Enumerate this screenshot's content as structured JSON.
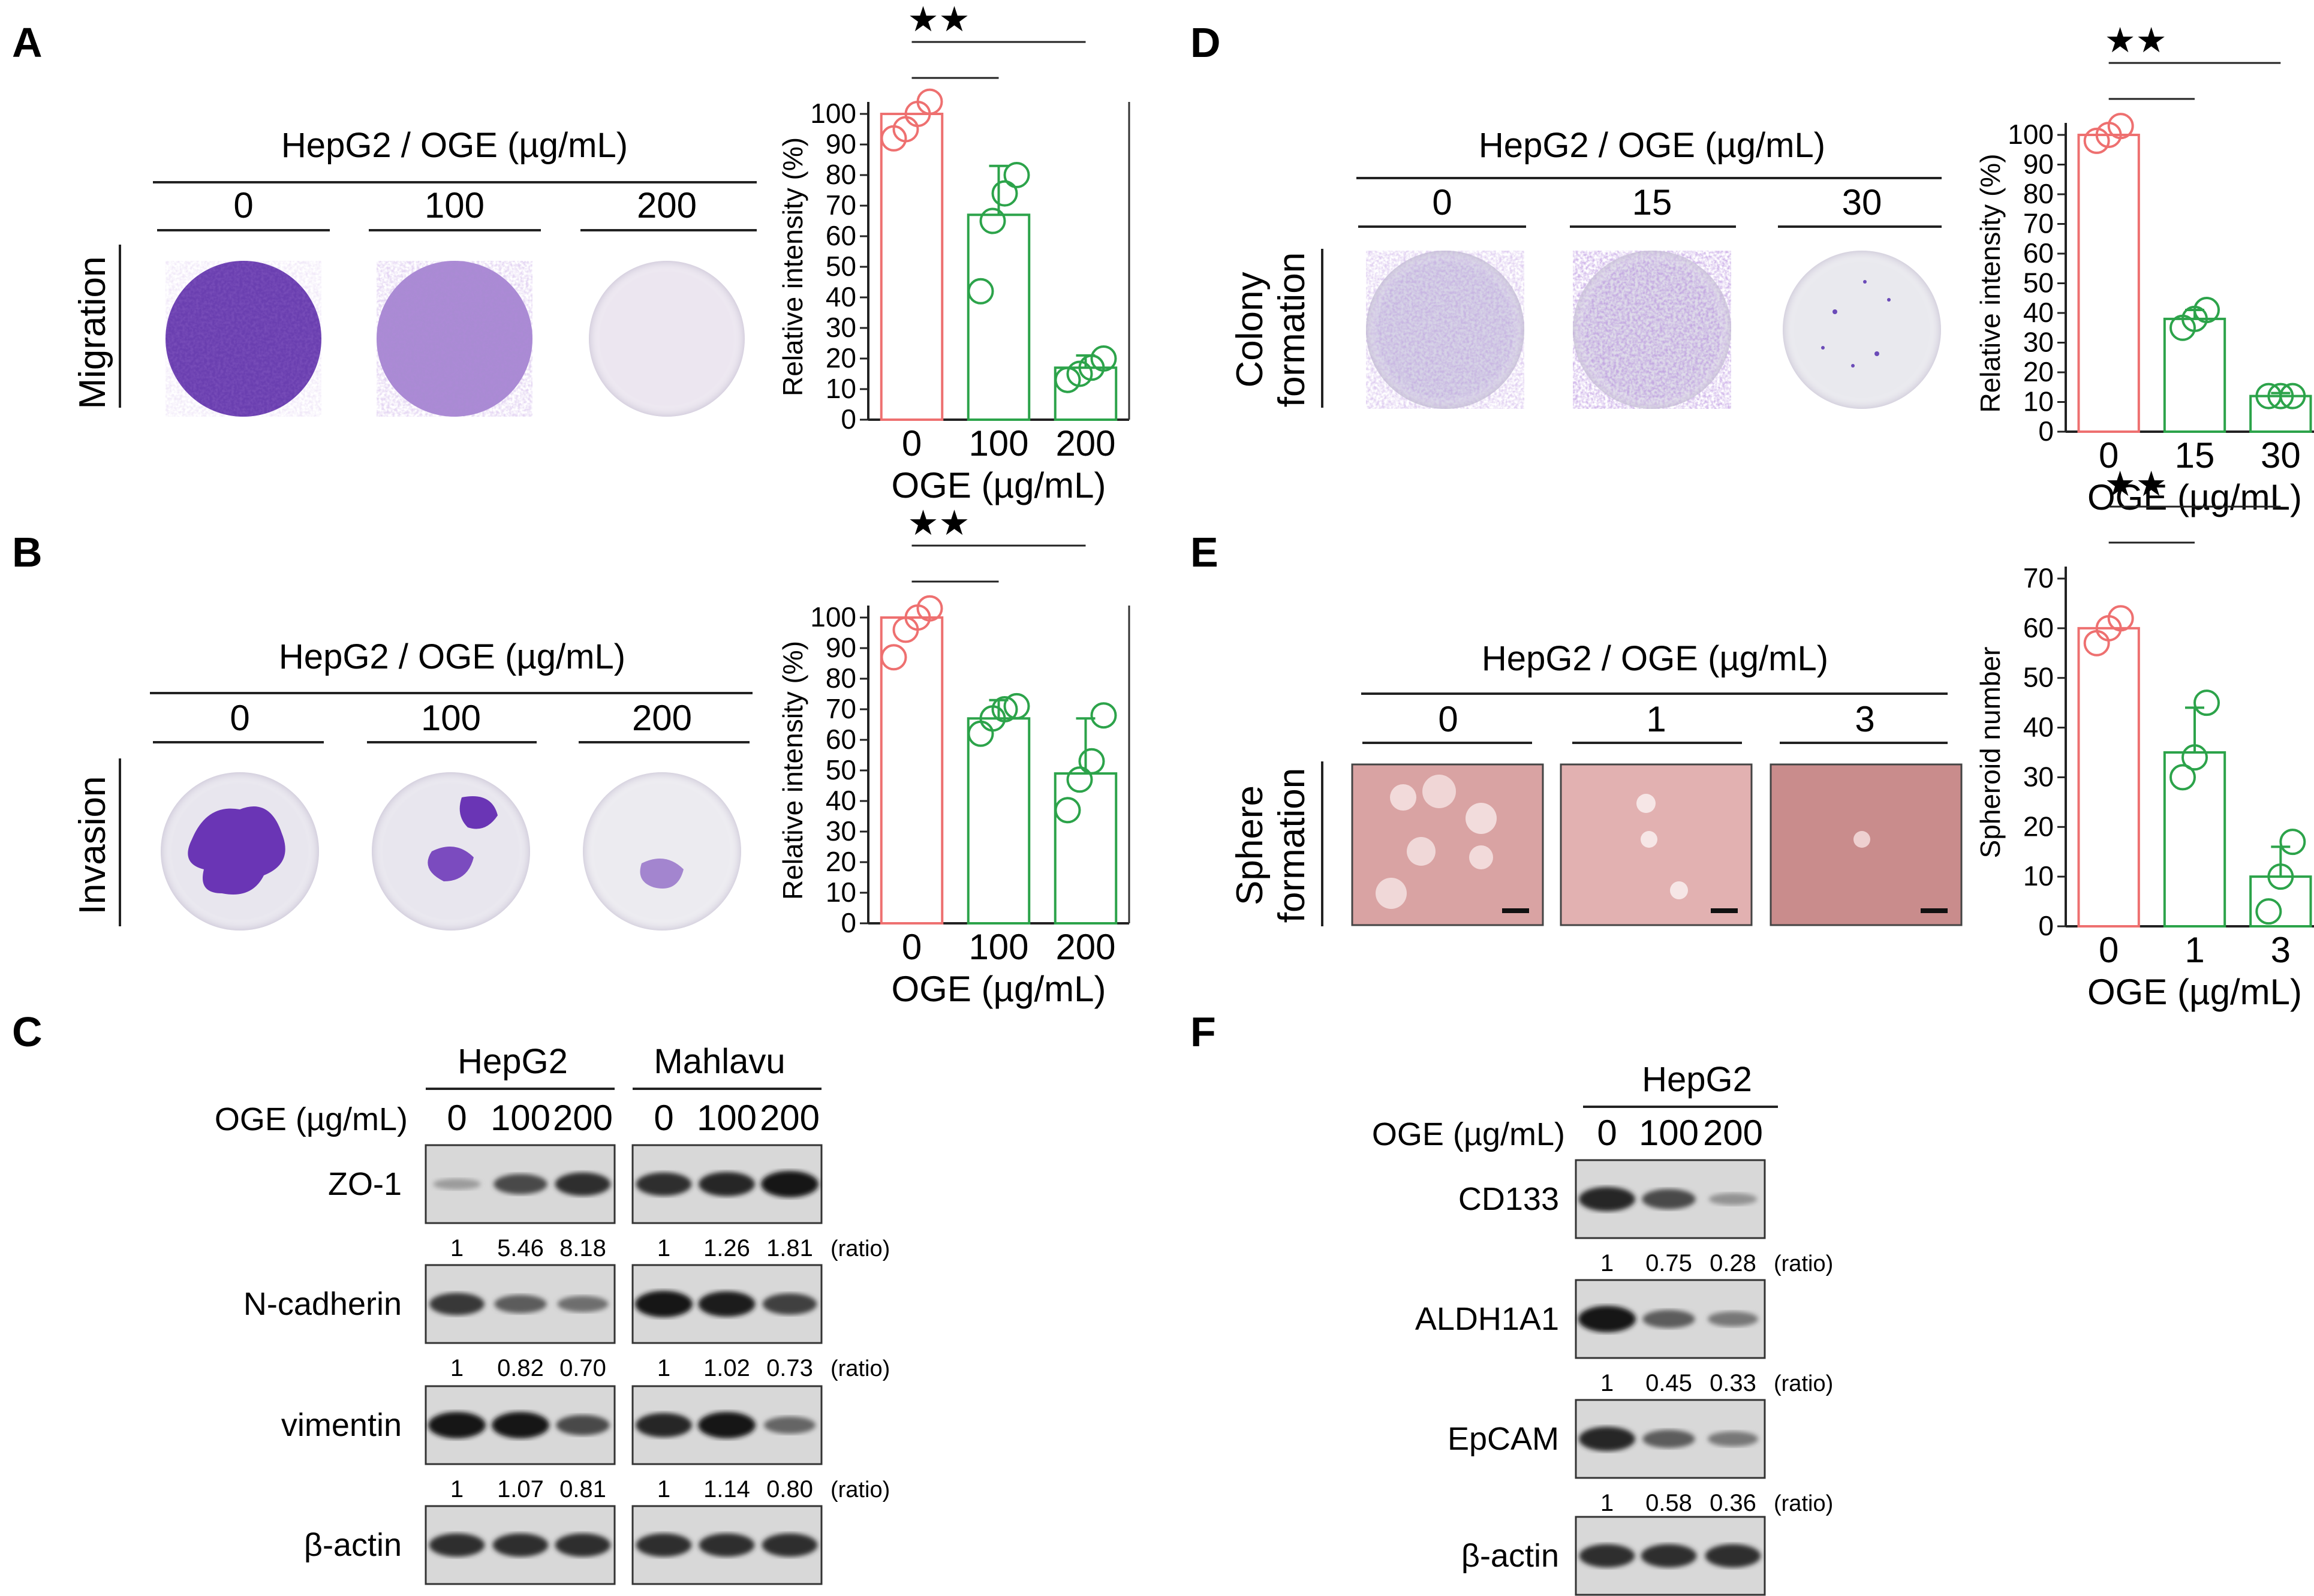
{
  "colors": {
    "ctrl": "#ee7070",
    "treat": "#2ca34a",
    "dish_stain": "#7a49b8",
    "blot": "#1a1a1a"
  },
  "panels": {
    "A": {
      "letter": "A",
      "title": "HepG2 / OGE (µg/mL)",
      "doses": [
        "0",
        "100",
        "200"
      ],
      "row_label": "Migration",
      "stain_levels": [
        1.0,
        0.5,
        0.06
      ]
    },
    "B": {
      "letter": "B",
      "title": "HepG2 / OGE (µg/mL)",
      "doses": [
        "0",
        "100",
        "200"
      ],
      "row_label": "Invasion"
    },
    "C": {
      "letter": "C",
      "cell_lines": [
        "HepG2",
        "Mahlavu"
      ],
      "dose_header": "OGE (µg/mL)",
      "doses": [
        "0",
        "100",
        "200"
      ],
      "ratio_tag": "(ratio)",
      "rows": [
        {
          "label": "ZO-1",
          "ratios": [
            [
              "1",
              "5.46",
              "8.18"
            ],
            [
              "1",
              "1.26",
              "1.81"
            ]
          ],
          "levels": [
            [
              0.25,
              0.7,
              0.85
            ],
            [
              0.85,
              0.9,
              1.0
            ]
          ]
        },
        {
          "label": "N-cadherin",
          "ratios": [
            [
              "1",
              "0.82",
              "0.70"
            ],
            [
              "1",
              "1.02",
              "0.73"
            ]
          ],
          "levels": [
            [
              0.8,
              0.6,
              0.5
            ],
            [
              1.0,
              0.95,
              0.75
            ]
          ]
        },
        {
          "label": "vimentin",
          "ratios": [
            [
              "1",
              "1.07",
              "0.81"
            ],
            [
              "1",
              "1.14",
              "0.80"
            ]
          ],
          "levels": [
            [
              1.0,
              1.0,
              0.7
            ],
            [
              0.9,
              1.0,
              0.55
            ]
          ]
        },
        {
          "label": "β-actin",
          "ratios": null,
          "levels": [
            [
              0.85,
              0.85,
              0.85
            ],
            [
              0.85,
              0.85,
              0.85
            ]
          ]
        }
      ]
    },
    "D": {
      "letter": "D",
      "title": "HepG2 / OGE (µg/mL)",
      "doses": [
        "0",
        "15",
        "30"
      ],
      "row_label_lines": [
        "Colony",
        "formation"
      ]
    },
    "E": {
      "letter": "E",
      "title": "HepG2 / OGE (µg/mL)",
      "doses": [
        "0",
        "1",
        "3"
      ],
      "row_label_lines": [
        "Sphere",
        "formation"
      ]
    },
    "F": {
      "letter": "F",
      "cell_line": "HepG2",
      "dose_header": "OGE (µg/mL)",
      "doses": [
        "0",
        "100",
        "200"
      ],
      "ratio_tag": "(ratio)",
      "rows": [
        {
          "label": "CD133",
          "ratios": [
            "1",
            "0.75",
            "0.28"
          ],
          "levels": [
            0.9,
            0.7,
            0.3
          ]
        },
        {
          "label": "ALDH1A1",
          "ratios": [
            "1",
            "0.45",
            "0.33"
          ],
          "levels": [
            1.0,
            0.6,
            0.45
          ]
        },
        {
          "label": "EpCAM",
          "ratios": [
            "1",
            "0.58",
            "0.36"
          ],
          "levels": [
            0.9,
            0.6,
            0.45
          ]
        },
        {
          "label": "β-actin",
          "ratios": null,
          "levels": [
            0.85,
            0.85,
            0.85
          ]
        }
      ]
    }
  },
  "chart_data": [
    {
      "panel": "A",
      "type": "bar",
      "categories": [
        "0",
        "100",
        "200"
      ],
      "values": [
        100,
        67,
        17
      ],
      "errors": [
        0,
        16,
        4
      ],
      "points": [
        [
          92,
          95,
          100,
          104
        ],
        [
          42,
          65,
          74,
          80
        ],
        [
          13,
          15,
          17,
          20
        ]
      ],
      "xlabel": "OGE (µg/mL)",
      "ylabel": "Relative intensity (%)",
      "ylim": [
        0,
        100
      ],
      "yticks": [
        0,
        10,
        20,
        30,
        40,
        50,
        60,
        70,
        80,
        90,
        100
      ],
      "significance": "★★"
    },
    {
      "panel": "B",
      "type": "bar",
      "categories": [
        "0",
        "100",
        "200"
      ],
      "values": [
        100,
        67,
        49
      ],
      "errors": [
        0,
        6,
        18
      ],
      "points": [
        [
          87,
          96,
          100,
          103
        ],
        [
          62,
          67,
          70,
          71
        ],
        [
          37,
          47,
          53,
          68
        ]
      ],
      "xlabel": "OGE (µg/mL)",
      "ylabel": "Relative intensity (%)",
      "ylim": [
        0,
        100
      ],
      "yticks": [
        0,
        10,
        20,
        30,
        40,
        50,
        60,
        70,
        80,
        90,
        100
      ],
      "significance": "★★"
    },
    {
      "panel": "D",
      "type": "bar",
      "categories": [
        "0",
        "15",
        "30"
      ],
      "values": [
        100,
        38,
        12
      ],
      "errors": [
        0,
        3,
        1
      ],
      "points": [
        [
          98,
          100,
          103
        ],
        [
          35,
          38,
          41
        ],
        [
          12,
          12,
          12
        ]
      ],
      "xlabel": "OGE (µg/mL)",
      "ylabel": "Relative intensity (%)",
      "ylim": [
        0,
        100
      ],
      "yticks": [
        0,
        10,
        20,
        30,
        40,
        50,
        60,
        70,
        80,
        90,
        100
      ],
      "significance": "★★"
    },
    {
      "panel": "E",
      "type": "bar",
      "categories": [
        "0",
        "1",
        "3"
      ],
      "values": [
        60,
        35,
        10
      ],
      "errors": [
        0,
        9,
        6
      ],
      "points": [
        [
          57,
          60,
          62
        ],
        [
          30,
          34,
          45
        ],
        [
          3,
          10,
          17
        ]
      ],
      "xlabel": "OGE (µg/mL)",
      "ylabel": "Spheroid number",
      "ylim": [
        0,
        70
      ],
      "yticks": [
        0,
        10,
        20,
        30,
        40,
        50,
        60,
        70
      ],
      "significance": "★★"
    }
  ]
}
